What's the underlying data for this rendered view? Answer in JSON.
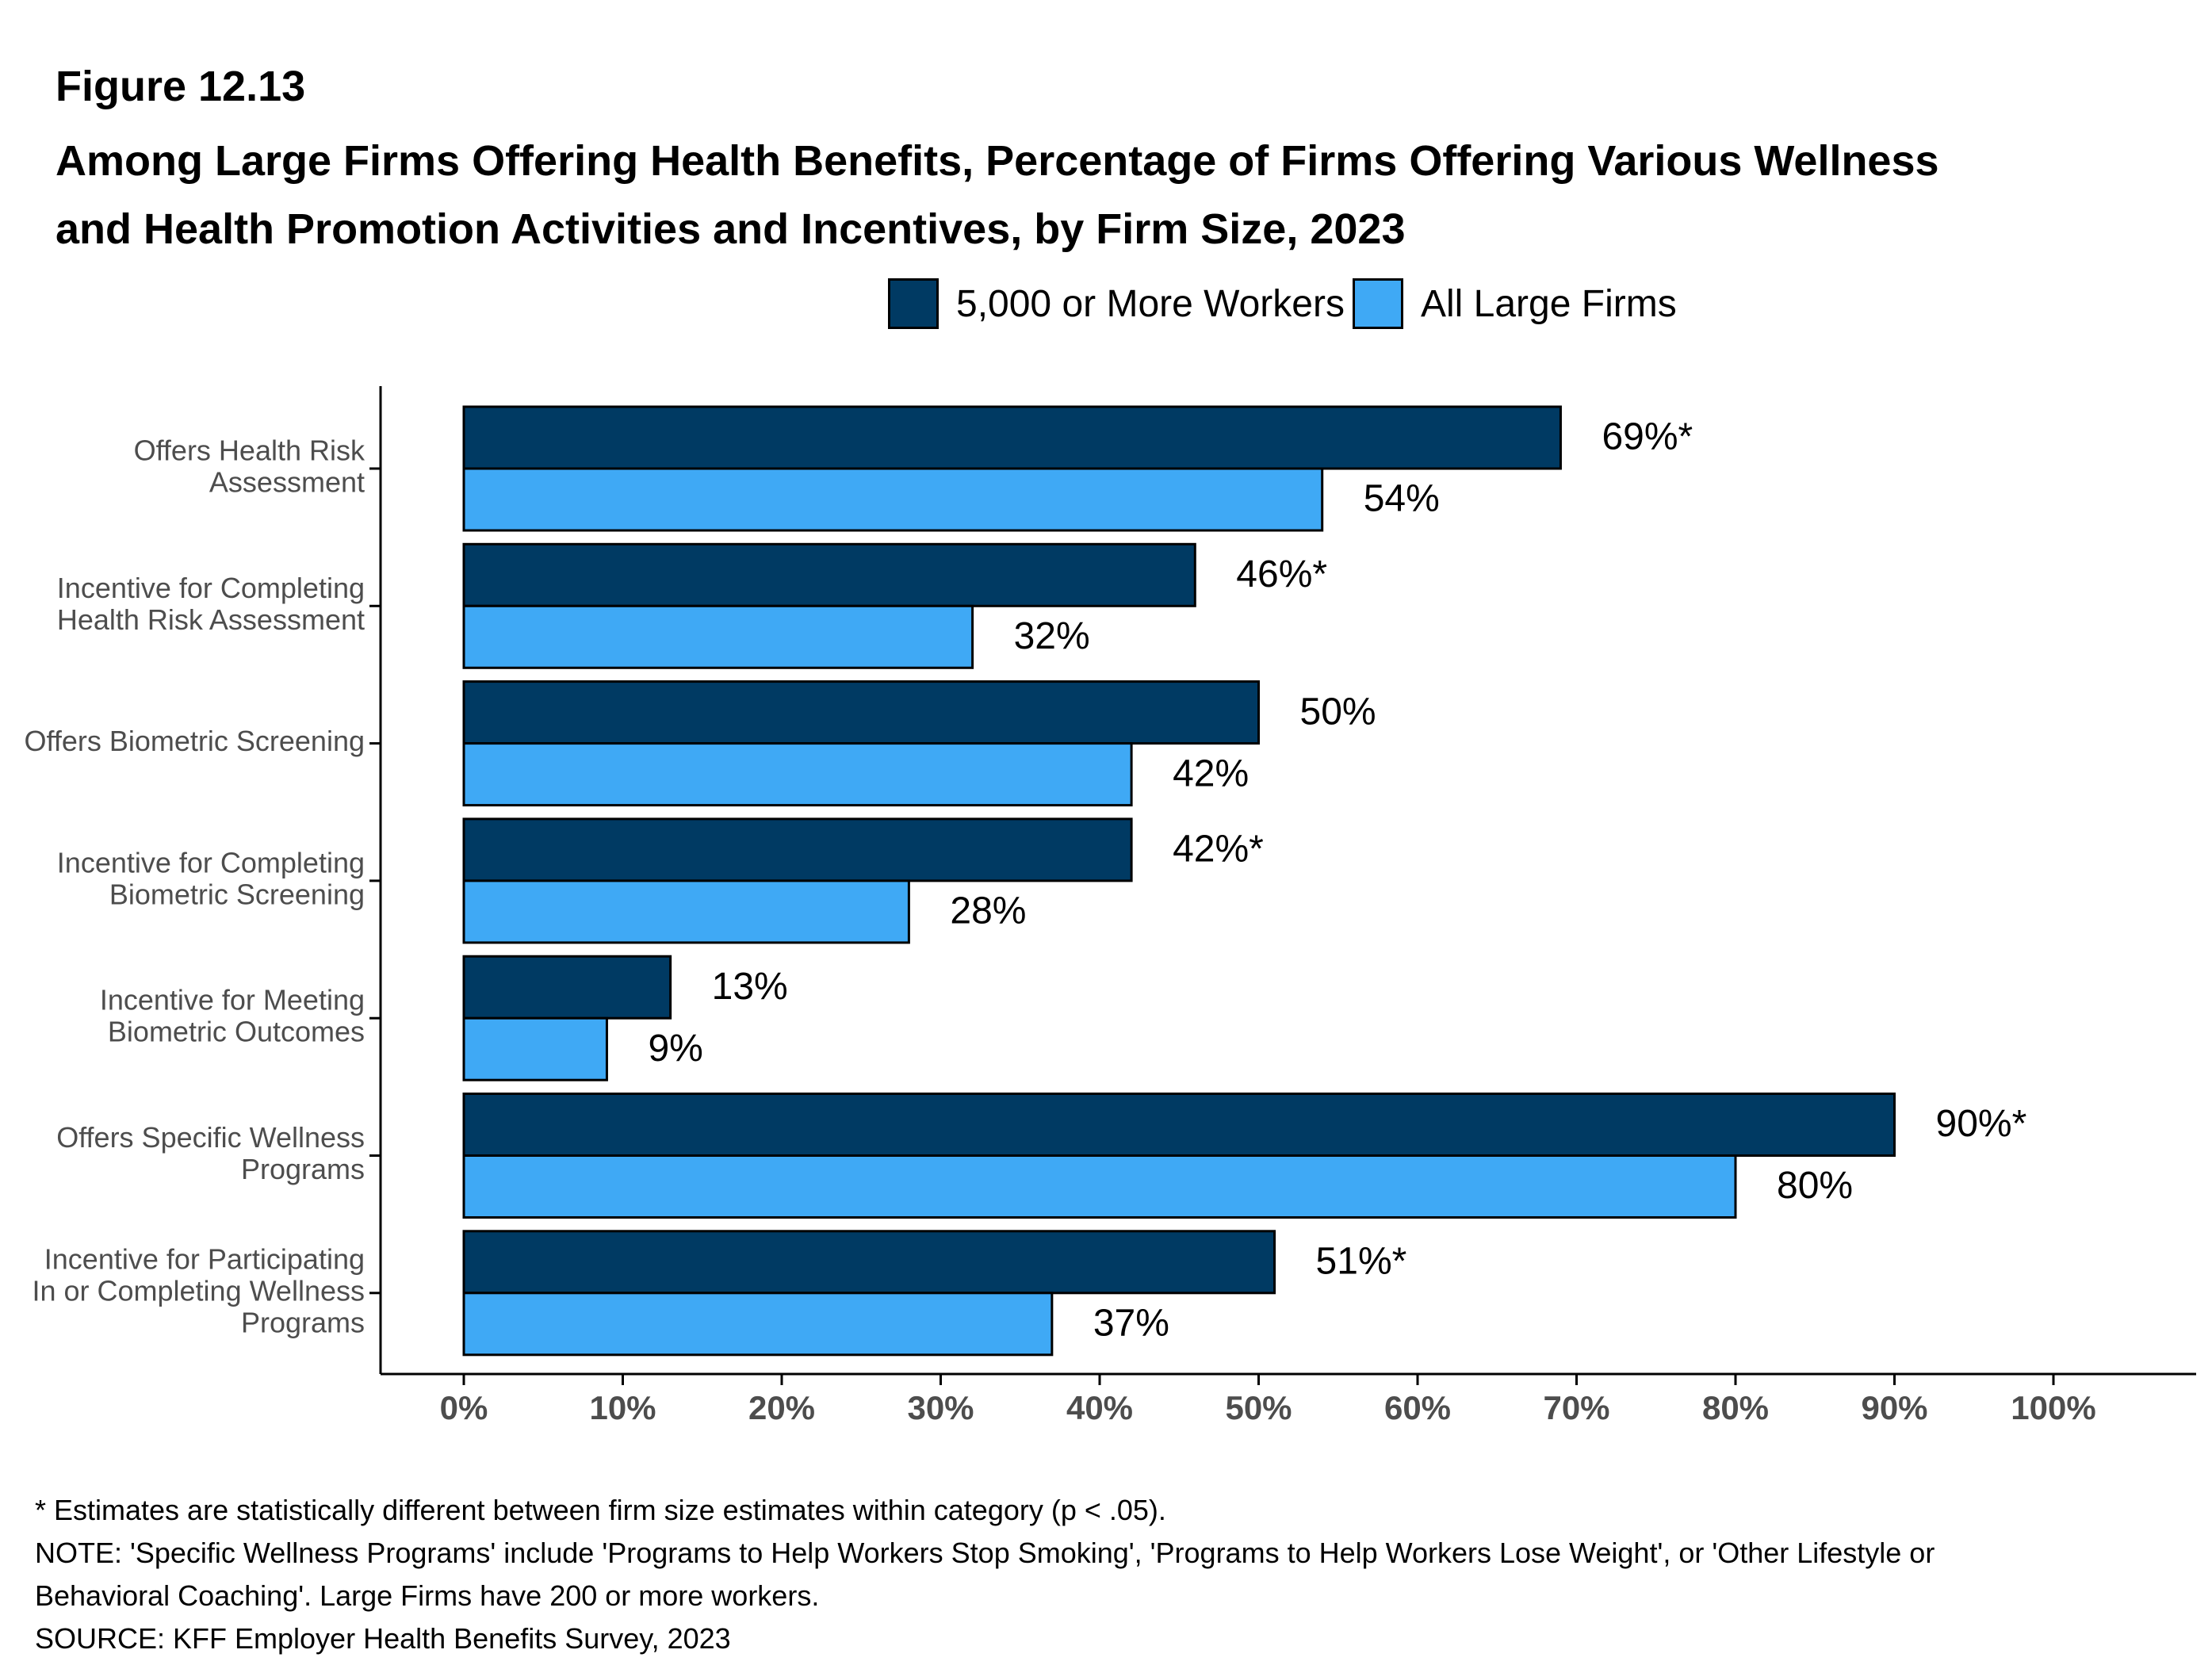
{
  "figure_label": "Figure 12.13",
  "title_lines": [
    "Among Large Firms Offering Health Benefits, Percentage of Firms Offering Various Wellness",
    "and Health Promotion Activities and Incentives, by Firm Size, 2023"
  ],
  "colors": {
    "series_large": "#003A63",
    "series_all": "#3FA9F5",
    "axis": "#000000",
    "tick_label": "#4D4D4D"
  },
  "chart_data": {
    "type": "bar",
    "orientation": "horizontal",
    "categories": [
      [
        "Offers Health Risk",
        "Assessment"
      ],
      [
        "Incentive for Completing",
        "Health Risk Assessment"
      ],
      [
        "Offers Biometric Screening"
      ],
      [
        "Incentive for Completing",
        "Biometric Screening"
      ],
      [
        "Incentive for Meeting",
        "Biometric Outcomes"
      ],
      [
        "Offers Specific Wellness",
        "Programs"
      ],
      [
        "Incentive for Participating",
        "In or Completing Wellness",
        "Programs"
      ]
    ],
    "series": [
      {
        "name": "5,000 or More Workers",
        "color": "#003A63",
        "values": [
          69,
          46,
          50,
          42,
          13,
          90,
          51
        ],
        "labels": [
          "69%*",
          "46%*",
          "50%",
          "42%*",
          "13%",
          "90%*",
          "51%*"
        ]
      },
      {
        "name": "All Large Firms",
        "color": "#3FA9F5",
        "values": [
          54,
          32,
          42,
          28,
          9,
          80,
          37
        ],
        "labels": [
          "54%",
          "32%",
          "42%",
          "28%",
          "9%",
          "80%",
          "37%"
        ]
      }
    ],
    "x_ticks": [
      0,
      10,
      20,
      30,
      40,
      50,
      60,
      70,
      80,
      90,
      100
    ],
    "x_tick_labels": [
      "0%",
      "10%",
      "20%",
      "30%",
      "40%",
      "50%",
      "60%",
      "70%",
      "80%",
      "90%",
      "100%"
    ],
    "xlim": [
      0,
      100
    ],
    "grid": false,
    "legend_position": "top"
  },
  "footnotes": [
    "* Estimates are statistically different between firm size estimates within category (p < .05).",
    "NOTE: 'Specific Wellness Programs' include 'Programs to Help Workers Stop Smoking', 'Programs to Help Workers Lose Weight', or 'Other Lifestyle or",
    "Behavioral Coaching'. Large Firms have 200 or more workers.",
    "SOURCE: KFF Employer Health Benefits Survey, 2023"
  ]
}
